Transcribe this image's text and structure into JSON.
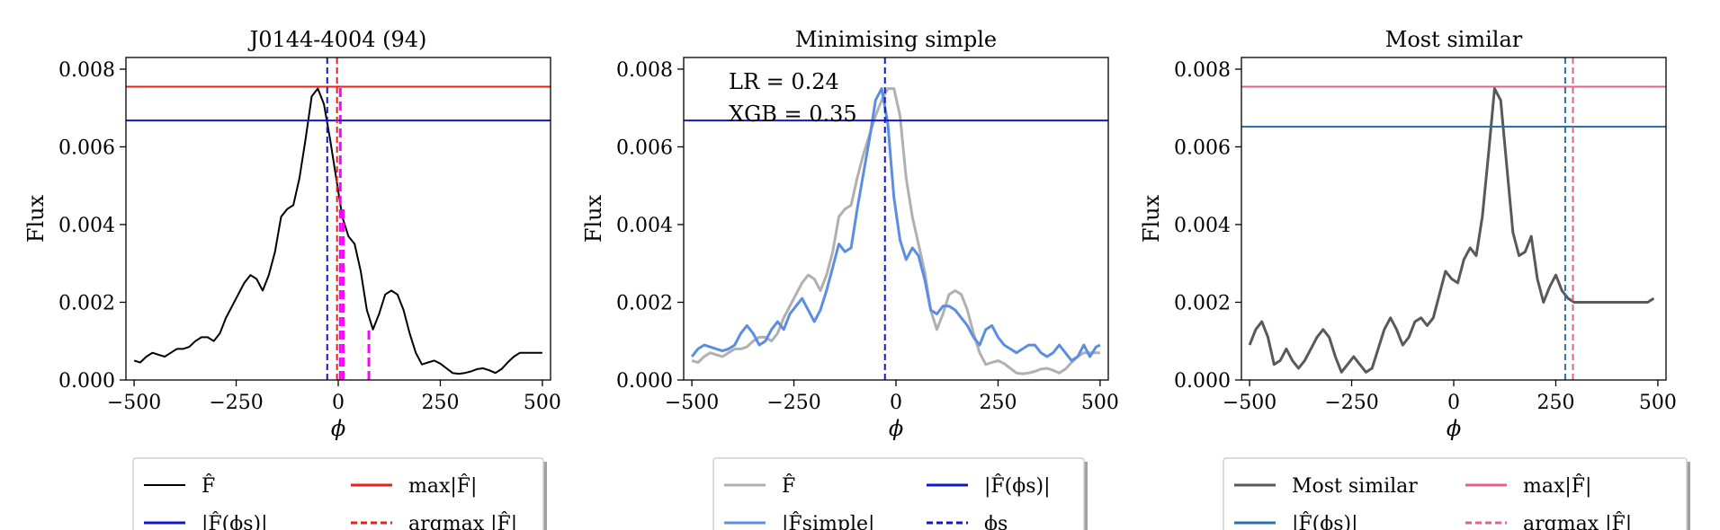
{
  "chart_data": [
    {
      "type": "line",
      "title": "J0144-4004 (94)",
      "xlabel": "ϕ",
      "ylabel": "Flux",
      "xlim": [
        -520,
        520
      ],
      "ylim": [
        0.0,
        0.0083
      ],
      "xticks": [
        -500,
        -250,
        0,
        250,
        500
      ],
      "xtick_labels": [
        "−500",
        "−250",
        "0",
        "250",
        "500"
      ],
      "yticks": [
        0.0,
        0.002,
        0.004,
        0.006,
        0.008
      ],
      "ytick_labels": [
        "0.000",
        "0.002",
        "0.004",
        "0.006",
        "0.008"
      ],
      "series": [
        {
          "name": "F̂",
          "color": "#000000",
          "x": [
            -500,
            -485,
            -470,
            -455,
            -440,
            -425,
            -410,
            -395,
            -380,
            -365,
            -350,
            -335,
            -320,
            -305,
            -290,
            -275,
            -260,
            -245,
            -230,
            -215,
            -200,
            -185,
            -170,
            -155,
            -140,
            -125,
            -110,
            -95,
            -80,
            -65,
            -50,
            -35,
            -20,
            -5,
            10,
            25,
            40,
            55,
            70,
            85,
            100,
            115,
            130,
            145,
            160,
            175,
            190,
            205,
            220,
            235,
            250,
            265,
            280,
            295,
            310,
            325,
            340,
            355,
            370,
            385,
            400,
            415,
            430,
            445,
            460,
            475,
            490,
            500
          ],
          "values": [
            0.0005,
            0.00045,
            0.0006,
            0.0007,
            0.00065,
            0.0006,
            0.0007,
            0.0008,
            0.0008,
            0.00085,
            0.001,
            0.0011,
            0.0011,
            0.001,
            0.0012,
            0.0016,
            0.0019,
            0.0022,
            0.0025,
            0.0027,
            0.0026,
            0.0023,
            0.0027,
            0.0033,
            0.0042,
            0.0044,
            0.0045,
            0.0052,
            0.0062,
            0.0073,
            0.0075,
            0.0071,
            0.0062,
            0.0052,
            0.0042,
            0.0037,
            0.0035,
            0.0028,
            0.0018,
            0.0013,
            0.0017,
            0.0022,
            0.0023,
            0.0022,
            0.0018,
            0.0012,
            0.0007,
            0.0004,
            0.00045,
            0.0005,
            0.00042,
            0.0003,
            0.00018,
            0.00016,
            0.00018,
            0.00022,
            0.00028,
            0.0003,
            0.00025,
            0.00018,
            0.00028,
            0.00045,
            0.0006,
            0.0007,
            0.0007,
            0.0007,
            0.0007,
            0.0007
          ]
        }
      ],
      "hlines": [
        {
          "name": "max|F̂|",
          "y": 0.00755,
          "color": "#e8211a"
        },
        {
          "name": "|F̂(ϕs)|",
          "y": 0.00668,
          "color": "#1417c8"
        }
      ],
      "vlines": [
        {
          "name": "argmax |F̂|",
          "x": -3,
          "color": "#e8211a",
          "dashed": true
        },
        {
          "name": "ϕs",
          "x": -27,
          "color": "#1417c8",
          "dashed": true
        }
      ],
      "magenta_segments": [
        {
          "x": 5,
          "y0": 0.0,
          "y1": 0.0076
        },
        {
          "x": 12,
          "y0": 0.0,
          "y1": 0.0044
        },
        {
          "x": 75,
          "y0": 0.0,
          "y1": 0.0013
        }
      ],
      "legend": {
        "placement": "below",
        "entries": [
          {
            "label": "F̂",
            "color": "#000000",
            "style": "solid"
          },
          {
            "label": "max|F̂|",
            "color": "#e8211a",
            "style": "solid"
          },
          {
            "label": "|F̂(ϕs)|",
            "color": "#1417c8",
            "style": "solid"
          },
          {
            "label": "argmax |F̂|",
            "color": "#e8211a",
            "style": "dashed"
          }
        ]
      }
    },
    {
      "type": "line",
      "title": "Minimising simple",
      "xlabel": "ϕ",
      "ylabel": "Flux",
      "xlim": [
        -520,
        520
      ],
      "ylim": [
        0.0,
        0.0083
      ],
      "xticks": [
        -500,
        -250,
        0,
        250,
        500
      ],
      "xtick_labels": [
        "−500",
        "−250",
        "0",
        "250",
        "500"
      ],
      "yticks": [
        0.0,
        0.002,
        0.004,
        0.006,
        0.008
      ],
      "ytick_labels": [
        "0.000",
        "0.002",
        "0.004",
        "0.006",
        "0.008"
      ],
      "annotations": [
        "LR = 0.24",
        "XGB = 0.35"
      ],
      "series": [
        {
          "name": "F̂",
          "color": "#b0b0b0",
          "x": [
            -500,
            -485,
            -470,
            -455,
            -440,
            -425,
            -410,
            -395,
            -380,
            -365,
            -350,
            -335,
            -320,
            -305,
            -290,
            -275,
            -260,
            -245,
            -230,
            -215,
            -200,
            -185,
            -170,
            -155,
            -140,
            -125,
            -110,
            -95,
            -80,
            -65,
            -50,
            -35,
            -20,
            -5,
            10,
            25,
            40,
            55,
            70,
            85,
            100,
            115,
            130,
            145,
            160,
            175,
            190,
            205,
            220,
            235,
            250,
            265,
            280,
            295,
            310,
            325,
            340,
            355,
            370,
            385,
            400,
            415,
            430,
            445,
            460,
            475,
            490,
            500
          ],
          "values": [
            0.0005,
            0.00045,
            0.0006,
            0.0007,
            0.00065,
            0.0006,
            0.0007,
            0.0008,
            0.0008,
            0.00085,
            0.001,
            0.0011,
            0.0011,
            0.001,
            0.0012,
            0.0016,
            0.0019,
            0.0022,
            0.0025,
            0.0027,
            0.0026,
            0.0023,
            0.0027,
            0.0033,
            0.0042,
            0.0044,
            0.0045,
            0.0052,
            0.0058,
            0.0063,
            0.0068,
            0.0072,
            0.0075,
            0.0075,
            0.0068,
            0.0052,
            0.0042,
            0.0035,
            0.0028,
            0.0018,
            0.0013,
            0.0017,
            0.0022,
            0.0023,
            0.0022,
            0.0018,
            0.0012,
            0.0007,
            0.0004,
            0.00045,
            0.0005,
            0.00042,
            0.0003,
            0.00018,
            0.00016,
            0.00018,
            0.00022,
            0.00028,
            0.0003,
            0.00025,
            0.00018,
            0.00028,
            0.00045,
            0.0006,
            0.0007,
            0.0007,
            0.0007,
            0.0007
          ]
        },
        {
          "name": "|F̂simple|",
          "color": "#5b8ee2",
          "x": [
            -500,
            -485,
            -470,
            -455,
            -440,
            -425,
            -410,
            -395,
            -380,
            -365,
            -350,
            -335,
            -320,
            -305,
            -290,
            -275,
            -260,
            -245,
            -230,
            -215,
            -200,
            -185,
            -170,
            -155,
            -140,
            -125,
            -110,
            -95,
            -80,
            -65,
            -50,
            -35,
            -20,
            -5,
            10,
            25,
            40,
            55,
            70,
            85,
            100,
            115,
            130,
            145,
            160,
            175,
            190,
            205,
            220,
            235,
            250,
            265,
            280,
            295,
            310,
            325,
            340,
            355,
            370,
            385,
            400,
            415,
            430,
            445,
            460,
            475,
            490,
            500
          ],
          "values": [
            0.0006,
            0.0008,
            0.0009,
            0.00085,
            0.0008,
            0.00075,
            0.0008,
            0.0009,
            0.0012,
            0.0014,
            0.0012,
            0.0009,
            0.001,
            0.0013,
            0.0015,
            0.0013,
            0.0017,
            0.0019,
            0.0021,
            0.0018,
            0.0015,
            0.0018,
            0.0023,
            0.0029,
            0.0035,
            0.0033,
            0.0034,
            0.0044,
            0.0053,
            0.0062,
            0.0072,
            0.0075,
            0.0066,
            0.0047,
            0.0036,
            0.0031,
            0.0034,
            0.0032,
            0.0026,
            0.0018,
            0.0017,
            0.0019,
            0.0019,
            0.0018,
            0.0016,
            0.0014,
            0.0011,
            0.0009,
            0.0013,
            0.0014,
            0.0011,
            0.0009,
            0.0008,
            0.0007,
            0.0008,
            0.0009,
            0.0009,
            0.0007,
            0.0006,
            0.0007,
            0.0009,
            0.0007,
            0.0005,
            0.0006,
            0.0009,
            0.0006,
            0.00085,
            0.0009
          ]
        }
      ],
      "hlines": [
        {
          "name": "|F̂(ϕs)|",
          "y": 0.00668,
          "color": "#1417c8"
        }
      ],
      "vlines": [
        {
          "name": "ϕs",
          "x": -27,
          "color": "#1417c8",
          "dashed": true
        }
      ],
      "legend": {
        "placement": "below",
        "entries": [
          {
            "label": "F̂",
            "color": "#b0b0b0",
            "style": "solid"
          },
          {
            "label": "|F̂(ϕs)|",
            "color": "#1417c8",
            "style": "solid"
          },
          {
            "label": "|F̂simple|",
            "color": "#5b8ee2",
            "style": "solid"
          },
          {
            "label": "ϕs",
            "color": "#1417c8",
            "style": "dashed"
          }
        ]
      }
    },
    {
      "type": "line",
      "title": "Most similar",
      "xlabel": "ϕ",
      "ylabel": "Flux",
      "xlim": [
        -520,
        520
      ],
      "ylim": [
        0.0,
        0.0083
      ],
      "xticks": [
        -500,
        -250,
        0,
        250,
        500
      ],
      "xtick_labels": [
        "−500",
        "−250",
        "0",
        "250",
        "500"
      ],
      "yticks": [
        0.0,
        0.002,
        0.004,
        0.006,
        0.008
      ],
      "ytick_labels": [
        "0.000",
        "0.002",
        "0.004",
        "0.006",
        "0.008"
      ],
      "series": [
        {
          "name": "Most similar",
          "color": "#595959",
          "x": [
            -500,
            -485,
            -470,
            -455,
            -440,
            -425,
            -410,
            -395,
            -380,
            -365,
            -350,
            -335,
            -320,
            -305,
            -290,
            -275,
            -260,
            -245,
            -230,
            -215,
            -200,
            -185,
            -170,
            -155,
            -140,
            -125,
            -110,
            -95,
            -80,
            -65,
            -50,
            -35,
            -20,
            -5,
            10,
            25,
            40,
            55,
            70,
            85,
            100,
            115,
            130,
            145,
            160,
            175,
            190,
            205,
            220,
            235,
            250,
            265,
            280,
            295,
            310,
            325,
            340,
            355,
            370,
            385,
            400,
            415,
            430,
            445,
            460,
            475,
            490
          ],
          "values": [
            0.0009,
            0.0013,
            0.0015,
            0.0011,
            0.0004,
            0.0005,
            0.0008,
            0.0005,
            0.0003,
            0.0005,
            0.0008,
            0.0011,
            0.0013,
            0.0011,
            0.0006,
            0.0002,
            0.0004,
            0.0006,
            0.0004,
            0.0002,
            0.0003,
            0.0008,
            0.0013,
            0.0016,
            0.0013,
            0.0009,
            0.0011,
            0.0015,
            0.0016,
            0.0014,
            0.0016,
            0.0022,
            0.0028,
            0.0026,
            0.0025,
            0.0031,
            0.0034,
            0.0032,
            0.0042,
            0.0058,
            0.0075,
            0.0072,
            0.0055,
            0.0038,
            0.0032,
            0.0033,
            0.0037,
            0.0026,
            0.002,
            0.0024,
            0.0027,
            0.0023,
            0.0021,
            0.002,
            0.002,
            0.002,
            0.002,
            0.002,
            0.002,
            0.002,
            0.002,
            0.002,
            0.002,
            0.002,
            0.002,
            0.002,
            0.0021
          ]
        }
      ],
      "hlines": [
        {
          "name": "max|F̂|",
          "y": 0.00755,
          "color": "#e0648a"
        },
        {
          "name": "|F̂(ϕs)|",
          "y": 0.00652,
          "color": "#2a72a8"
        }
      ],
      "vlines": [
        {
          "name": "argmax |F̂|",
          "x": 292,
          "color": "#e0648a",
          "dashed": true
        },
        {
          "name": "ϕs",
          "x": 273,
          "color": "#2a72a8",
          "dashed": true
        }
      ],
      "legend": {
        "placement": "below",
        "entries": [
          {
            "label": "Most similar",
            "color": "#595959",
            "style": "solid"
          },
          {
            "label": "max|F̂|",
            "color": "#e0648a",
            "style": "solid"
          },
          {
            "label": "|F̂(ϕs)|",
            "color": "#2a72a8",
            "style": "solid"
          },
          {
            "label": "argmax |F̂|",
            "color": "#e0648a",
            "style": "dashed"
          }
        ]
      }
    }
  ]
}
